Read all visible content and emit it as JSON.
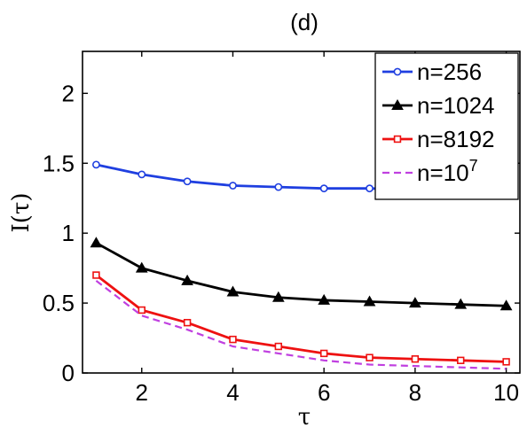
{
  "chart_data": {
    "type": "line",
    "title": "(d)",
    "xlabel": "τ",
    "ylabel": "I(τ)",
    "xlim": [
      0.7,
      10.3
    ],
    "ylim": [
      0,
      2.3
    ],
    "xticks": [
      2,
      4,
      6,
      8,
      10
    ],
    "xtick_labels": [
      "2",
      "4",
      "6",
      "8",
      "10"
    ],
    "yticks": [
      0,
      0.5,
      1,
      1.5,
      2
    ],
    "ytick_labels": [
      "0",
      "0.5",
      "1",
      "1.5",
      "2"
    ],
    "grid": false,
    "legend_position": "top-right",
    "x": [
      1,
      2,
      3,
      4,
      5,
      6,
      7,
      8,
      9,
      10
    ],
    "series": [
      {
        "name": "n=256",
        "legend_base": "n=256",
        "legend_sup": "",
        "color": "#1f3fe0",
        "style": "solid",
        "marker": "circle",
        "values": [
          1.49,
          1.42,
          1.37,
          1.34,
          1.33,
          1.32,
          1.32,
          1.31,
          1.31,
          1.31
        ]
      },
      {
        "name": "n=1024",
        "legend_base": "n=1024",
        "legend_sup": "",
        "color": "#000000",
        "style": "solid",
        "marker": "triangle",
        "values": [
          0.93,
          0.75,
          0.66,
          0.58,
          0.54,
          0.52,
          0.51,
          0.5,
          0.49,
          0.48
        ]
      },
      {
        "name": "n=8192",
        "legend_base": "n=8192",
        "legend_sup": "",
        "color": "#ee1111",
        "style": "solid",
        "marker": "square",
        "values": [
          0.7,
          0.45,
          0.36,
          0.24,
          0.19,
          0.14,
          0.11,
          0.1,
          0.09,
          0.08
        ]
      },
      {
        "name": "n=10^7",
        "legend_base": "n=10",
        "legend_sup": "7",
        "color": "#c040e0",
        "style": "dashed",
        "marker": "none",
        "values": [
          0.66,
          0.41,
          0.31,
          0.19,
          0.14,
          0.09,
          0.06,
          0.05,
          0.04,
          0.03
        ]
      }
    ]
  }
}
